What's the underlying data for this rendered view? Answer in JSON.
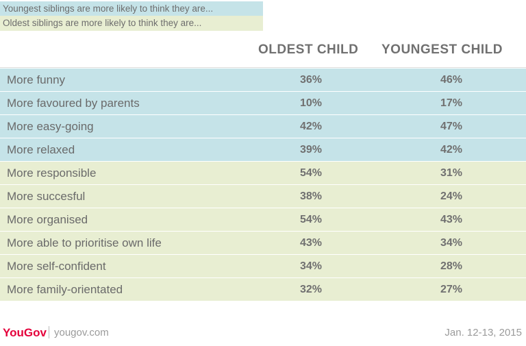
{
  "legend": {
    "youngest_note": "Youngest siblings are more likely to think they are...",
    "oldest_note": "Oldest siblings are more likely to think they are...",
    "youngest_color": "#c5e3e8",
    "oldest_color": "#e8eed2"
  },
  "chart_data": {
    "type": "table",
    "columns": [
      "OLDEST CHILD",
      "YOUNGEST CHILD"
    ],
    "rows": [
      {
        "label": "More funny",
        "group": "youngest",
        "oldest": "36%",
        "youngest": "46%"
      },
      {
        "label": "More favoured by parents",
        "group": "youngest",
        "oldest": "10%",
        "youngest": "17%"
      },
      {
        "label": "More easy-going",
        "group": "youngest",
        "oldest": "42%",
        "youngest": "47%"
      },
      {
        "label": "More relaxed",
        "group": "youngest",
        "oldest": "39%",
        "youngest": "42%"
      },
      {
        "label": "More responsible",
        "group": "oldest",
        "oldest": "54%",
        "youngest": "31%"
      },
      {
        "label": "More succesful",
        "group": "oldest",
        "oldest": "38%",
        "youngest": "24%"
      },
      {
        "label": "More organised",
        "group": "oldest",
        "oldest": "54%",
        "youngest": "43%"
      },
      {
        "label": "More able to prioritise own life",
        "group": "oldest",
        "oldest": "43%",
        "youngest": "34%"
      },
      {
        "label": "More self-confident",
        "group": "oldest",
        "oldest": "34%",
        "youngest": "28%"
      },
      {
        "label": "More family-orientated",
        "group": "oldest",
        "oldest": "32%",
        "youngest": "27%"
      }
    ]
  },
  "footer": {
    "brand": "YouGov",
    "site": "yougov.com",
    "date": "Jan. 12-13, 2015",
    "brand_color": "#e4003b"
  }
}
